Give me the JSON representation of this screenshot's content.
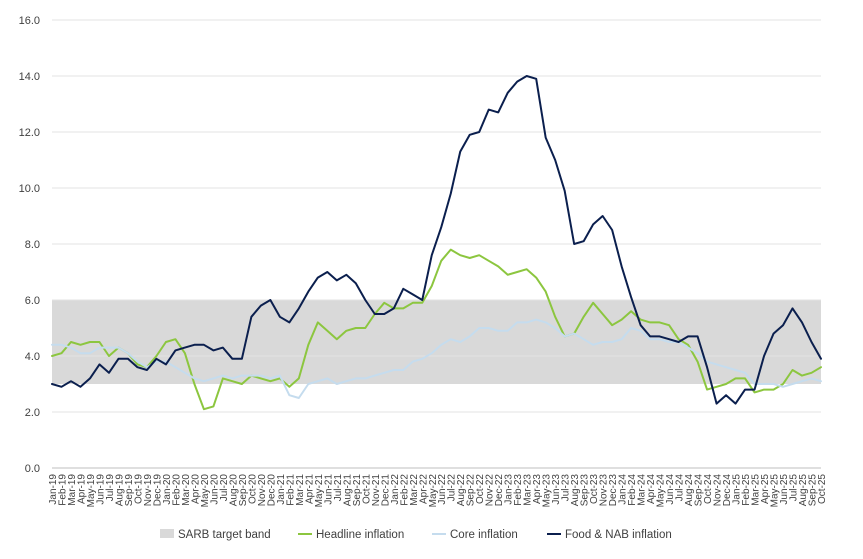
{
  "chart_data": {
    "type": "line",
    "title": "",
    "xlabel": "",
    "ylabel": "",
    "ylim": [
      0,
      16
    ],
    "yticks": [
      "0.0",
      "2.0",
      "4.0",
      "6.0",
      "8.0",
      "10.0",
      "12.0",
      "14.0",
      "16.0"
    ],
    "grid": true,
    "legend_position": "bottom",
    "categories": [
      "Jan-19",
      "Feb-19",
      "Mar-19",
      "Apr-19",
      "May-19",
      "Jun-19",
      "Jul-19",
      "Aug-19",
      "Sep-19",
      "Oct-19",
      "Nov-19",
      "Dec-19",
      "Jan-20",
      "Feb-20",
      "Mar-20",
      "Apr-20",
      "May-20",
      "Jun-20",
      "Jul-20",
      "Aug-20",
      "Sep-20",
      "Oct-20",
      "Nov-20",
      "Dec-20",
      "Jan-21",
      "Feb-21",
      "Mar-21",
      "Apr-21",
      "May-21",
      "Jun-21",
      "Jul-21",
      "Aug-21",
      "Sep-21",
      "Oct-21",
      "Nov-21",
      "Dec-21",
      "Jan-22",
      "Feb-22",
      "Mar-22",
      "Apr-22",
      "May-22",
      "Jun-22",
      "Jul-22",
      "Aug-22",
      "Sep-22",
      "Oct-22",
      "Nov-22",
      "Dec-22",
      "Jan-23",
      "Feb-23",
      "Mar-23",
      "Apr-23",
      "May-23",
      "Jun-23",
      "Jul-23",
      "Aug-23",
      "Sep-23",
      "Oct-23",
      "Nov-23",
      "Dec-23",
      "Jan-24",
      "Feb-24",
      "Mar-24",
      "Apr-24",
      "May-24",
      "Jun-24",
      "Jul-24",
      "Aug-24",
      "Sep-24",
      "Oct-24",
      "Nov-24",
      "Dec-24",
      "Jan-25",
      "Feb-25",
      "Mar-25",
      "Apr-25",
      "May-25",
      "Jun-25",
      "Jul-25",
      "Aug-25",
      "Sep-25",
      "Oct-25"
    ],
    "band": {
      "name": "SARB target band",
      "low": 3,
      "high": 6,
      "color": "#d9d9d9"
    },
    "series": [
      {
        "name": "Headline inflation",
        "color": "#8cc63f",
        "values": [
          4.0,
          4.1,
          4.5,
          4.4,
          4.5,
          4.5,
          4.0,
          4.3,
          4.1,
          3.7,
          3.6,
          4.0,
          4.5,
          4.6,
          4.1,
          3.0,
          2.1,
          2.2,
          3.2,
          3.1,
          3.0,
          3.3,
          3.2,
          3.1,
          3.2,
          2.9,
          3.2,
          4.4,
          5.2,
          4.9,
          4.6,
          4.9,
          5.0,
          5.0,
          5.5,
          5.9,
          5.7,
          5.7,
          5.9,
          5.9,
          6.5,
          7.4,
          7.8,
          7.6,
          7.5,
          7.6,
          7.4,
          7.2,
          6.9,
          7.0,
          7.1,
          6.8,
          6.3,
          5.4,
          4.7,
          4.8,
          5.4,
          5.9,
          5.5,
          5.1,
          5.3,
          5.6,
          5.3,
          5.2,
          5.2,
          5.1,
          4.6,
          4.4,
          3.8,
          2.8,
          2.9,
          3.0,
          3.2,
          3.2,
          2.7,
          2.8,
          2.8,
          3.0,
          3.5,
          3.3,
          3.4,
          3.6
        ]
      },
      {
        "name": "Core inflation",
        "color": "#c5dcee",
        "values": [
          4.4,
          4.4,
          4.3,
          4.1,
          4.1,
          4.3,
          4.3,
          4.3,
          4.1,
          3.8,
          3.6,
          3.8,
          3.8,
          3.6,
          3.4,
          3.2,
          3.1,
          3.2,
          3.3,
          3.2,
          3.3,
          3.3,
          3.3,
          3.2,
          3.3,
          2.6,
          2.5,
          3.0,
          3.1,
          3.2,
          3.0,
          3.1,
          3.2,
          3.2,
          3.3,
          3.4,
          3.5,
          3.5,
          3.8,
          3.9,
          4.1,
          4.4,
          4.6,
          4.5,
          4.7,
          5.0,
          5.0,
          4.9,
          4.9,
          5.2,
          5.2,
          5.3,
          5.2,
          5.0,
          4.7,
          4.8,
          4.6,
          4.4,
          4.5,
          4.5,
          4.6,
          5.0,
          4.9,
          4.6,
          4.6,
          4.5,
          4.5,
          4.3,
          4.1,
          3.8,
          3.7,
          3.6,
          3.5,
          3.4,
          3.0,
          3.0,
          3.0,
          2.9,
          3.0,
          3.1,
          3.2,
          3.1
        ]
      },
      {
        "name": "Food & NAB inflation",
        "color": "#0b1f4e",
        "values": [
          3.0,
          2.9,
          3.1,
          2.9,
          3.2,
          3.7,
          3.4,
          3.9,
          3.9,
          3.6,
          3.5,
          3.9,
          3.7,
          4.2,
          4.3,
          4.4,
          4.4,
          4.2,
          4.3,
          3.9,
          3.9,
          5.4,
          5.8,
          6.0,
          5.4,
          5.2,
          5.7,
          6.3,
          6.8,
          7.0,
          6.7,
          6.9,
          6.6,
          6.0,
          5.5,
          5.5,
          5.7,
          6.4,
          6.2,
          6.0,
          7.6,
          8.6,
          9.8,
          11.3,
          11.9,
          12.0,
          12.8,
          12.7,
          13.4,
          13.8,
          14.0,
          13.9,
          11.8,
          11.0,
          9.9,
          8.0,
          8.1,
          8.7,
          9.0,
          8.5,
          7.2,
          6.1,
          5.1,
          4.7,
          4.7,
          4.6,
          4.5,
          4.7,
          4.7,
          3.6,
          2.3,
          2.6,
          2.3,
          2.8,
          2.8,
          4.0,
          4.8,
          5.1,
          5.7,
          5.2,
          4.5,
          3.9
        ]
      }
    ],
    "legend": [
      {
        "label": "SARB target band",
        "kind": "band"
      },
      {
        "label": "Headline inflation",
        "kind": "line"
      },
      {
        "label": "Core inflation",
        "kind": "line"
      },
      {
        "label": "Food & NAB inflation",
        "kind": "line"
      }
    ]
  }
}
